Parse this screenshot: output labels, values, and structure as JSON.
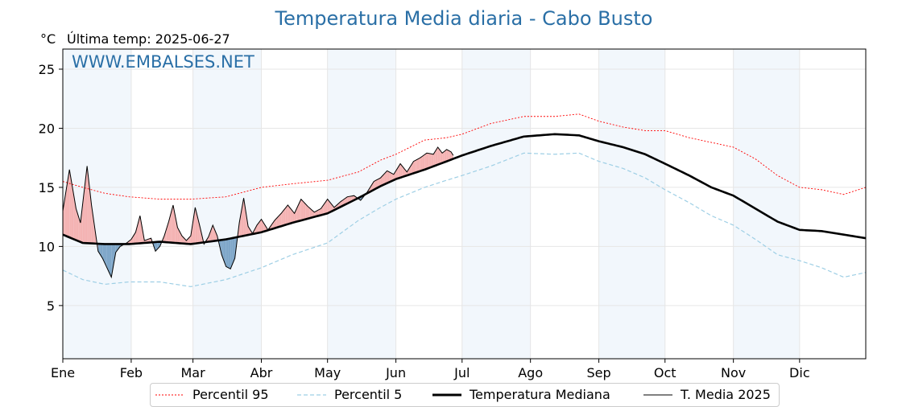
{
  "chart_data": {
    "type": "line",
    "title": "Temperatura Media diaria - Cabo Busto",
    "ylabel": "°C",
    "last_temp_label": "Última temp: 2025-06-27",
    "watermark": "WWW.EMBALSES.NET",
    "ylim": [
      0.5,
      26.7
    ],
    "xlim": [
      1,
      365
    ],
    "y_ticks": [
      5,
      10,
      15,
      20,
      25
    ],
    "x_tick_labels": [
      "Ene",
      "Feb",
      "Mar",
      "Abr",
      "May",
      "Jun",
      "Jul",
      "Ago",
      "Sep",
      "Oct",
      "Nov",
      "Dic"
    ],
    "x_tick_days": [
      1,
      32,
      60,
      91,
      121,
      152,
      182,
      213,
      244,
      274,
      305,
      335
    ],
    "grid": true,
    "legend_position": "bottom",
    "series": [
      {
        "name": "Percentil 95",
        "color": "#ff0000",
        "style": "dotted",
        "knots": [
          [
            1,
            15.5
          ],
          [
            10,
            15.0
          ],
          [
            20,
            14.5
          ],
          [
            31,
            14.2
          ],
          [
            45,
            14.0
          ],
          [
            59,
            14.0
          ],
          [
            75,
            14.2
          ],
          [
            91,
            15.0
          ],
          [
            105,
            15.3
          ],
          [
            121,
            15.6
          ],
          [
            135,
            16.3
          ],
          [
            145,
            17.3
          ],
          [
            152,
            17.8
          ],
          [
            165,
            19.0
          ],
          [
            175,
            19.2
          ],
          [
            182,
            19.5
          ],
          [
            195,
            20.4
          ],
          [
            210,
            21.0
          ],
          [
            224,
            21.0
          ],
          [
            235,
            21.2
          ],
          [
            244,
            20.6
          ],
          [
            255,
            20.1
          ],
          [
            265,
            19.8
          ],
          [
            274,
            19.8
          ],
          [
            285,
            19.2
          ],
          [
            295,
            18.8
          ],
          [
            305,
            18.4
          ],
          [
            315,
            17.4
          ],
          [
            325,
            16.0
          ],
          [
            335,
            15.0
          ],
          [
            345,
            14.8
          ],
          [
            355,
            14.4
          ],
          [
            365,
            15.0
          ]
        ]
      },
      {
        "name": "Percentil 5",
        "color": "#9ecfe5",
        "style": "dashed",
        "knots": [
          [
            1,
            8.0
          ],
          [
            10,
            7.2
          ],
          [
            20,
            6.8
          ],
          [
            31,
            7.0
          ],
          [
            45,
            7.0
          ],
          [
            59,
            6.6
          ],
          [
            75,
            7.2
          ],
          [
            91,
            8.2
          ],
          [
            105,
            9.3
          ],
          [
            121,
            10.3
          ],
          [
            135,
            12.2
          ],
          [
            145,
            13.3
          ],
          [
            152,
            14.0
          ],
          [
            165,
            15.0
          ],
          [
            175,
            15.6
          ],
          [
            182,
            16.0
          ],
          [
            195,
            16.8
          ],
          [
            210,
            17.9
          ],
          [
            224,
            17.8
          ],
          [
            235,
            17.9
          ],
          [
            244,
            17.2
          ],
          [
            255,
            16.6
          ],
          [
            265,
            15.8
          ],
          [
            274,
            14.8
          ],
          [
            285,
            13.7
          ],
          [
            295,
            12.6
          ],
          [
            305,
            11.8
          ],
          [
            315,
            10.6
          ],
          [
            325,
            9.3
          ],
          [
            335,
            8.8
          ],
          [
            345,
            8.2
          ],
          [
            355,
            7.4
          ],
          [
            365,
            7.8
          ]
        ]
      },
      {
        "name": "Temperatura Mediana",
        "color": "#000000",
        "style": "solid",
        "knots": [
          [
            1,
            11.0
          ],
          [
            10,
            10.3
          ],
          [
            20,
            10.2
          ],
          [
            31,
            10.2
          ],
          [
            45,
            10.4
          ],
          [
            59,
            10.2
          ],
          [
            75,
            10.6
          ],
          [
            91,
            11.2
          ],
          [
            105,
            12.0
          ],
          [
            121,
            12.8
          ],
          [
            135,
            14.1
          ],
          [
            145,
            15.1
          ],
          [
            152,
            15.7
          ],
          [
            165,
            16.5
          ],
          [
            175,
            17.2
          ],
          [
            182,
            17.7
          ],
          [
            195,
            18.5
          ],
          [
            210,
            19.3
          ],
          [
            224,
            19.5
          ],
          [
            235,
            19.4
          ],
          [
            244,
            18.9
          ],
          [
            255,
            18.4
          ],
          [
            265,
            17.8
          ],
          [
            274,
            17.0
          ],
          [
            285,
            16.0
          ],
          [
            295,
            15.0
          ],
          [
            305,
            14.3
          ],
          [
            315,
            13.2
          ],
          [
            325,
            12.1
          ],
          [
            335,
            11.4
          ],
          [
            345,
            11.3
          ],
          [
            355,
            11.0
          ],
          [
            365,
            10.7
          ]
        ]
      },
      {
        "name": "T. Media 2025",
        "color": "#000000",
        "style": "thin",
        "knots": [
          [
            1,
            13.0
          ],
          [
            4,
            16.5
          ],
          [
            7,
            13.2
          ],
          [
            9,
            12.0
          ],
          [
            12,
            16.8
          ],
          [
            14,
            13.5
          ],
          [
            17,
            9.6
          ],
          [
            19,
            9.0
          ],
          [
            21,
            8.2
          ],
          [
            23,
            7.4
          ],
          [
            25,
            9.5
          ],
          [
            27,
            10.0
          ],
          [
            30,
            10.3
          ],
          [
            32,
            10.6
          ],
          [
            34,
            11.2
          ],
          [
            36,
            12.6
          ],
          [
            38,
            10.5
          ],
          [
            41,
            10.7
          ],
          [
            43,
            9.6
          ],
          [
            45,
            10.0
          ],
          [
            47,
            10.9
          ],
          [
            49,
            12.1
          ],
          [
            51,
            13.5
          ],
          [
            53,
            11.6
          ],
          [
            55,
            10.9
          ],
          [
            57,
            10.5
          ],
          [
            59,
            10.9
          ],
          [
            61,
            13.3
          ],
          [
            63,
            11.8
          ],
          [
            65,
            10.2
          ],
          [
            67,
            10.8
          ],
          [
            69,
            11.8
          ],
          [
            71,
            10.9
          ],
          [
            73,
            9.3
          ],
          [
            75,
            8.3
          ],
          [
            77,
            8.1
          ],
          [
            79,
            9.0
          ],
          [
            81,
            12.0
          ],
          [
            83,
            14.1
          ],
          [
            85,
            11.7
          ],
          [
            87,
            11.1
          ],
          [
            89,
            11.8
          ],
          [
            91,
            12.3
          ],
          [
            94,
            11.4
          ],
          [
            97,
            12.2
          ],
          [
            100,
            12.8
          ],
          [
            103,
            13.5
          ],
          [
            106,
            12.8
          ],
          [
            109,
            14.0
          ],
          [
            112,
            13.4
          ],
          [
            115,
            12.9
          ],
          [
            118,
            13.2
          ],
          [
            121,
            14.0
          ],
          [
            124,
            13.3
          ],
          [
            127,
            13.8
          ],
          [
            130,
            14.2
          ],
          [
            133,
            14.3
          ],
          [
            136,
            13.9
          ],
          [
            139,
            14.6
          ],
          [
            142,
            15.5
          ],
          [
            145,
            15.8
          ],
          [
            148,
            16.4
          ],
          [
            151,
            16.1
          ],
          [
            154,
            17.0
          ],
          [
            157,
            16.3
          ],
          [
            160,
            17.2
          ],
          [
            163,
            17.5
          ],
          [
            166,
            17.9
          ],
          [
            169,
            17.8
          ],
          [
            171,
            18.4
          ],
          [
            173,
            17.9
          ],
          [
            175,
            18.2
          ],
          [
            177,
            18.0
          ],
          [
            178,
            17.7
          ]
        ]
      }
    ]
  }
}
